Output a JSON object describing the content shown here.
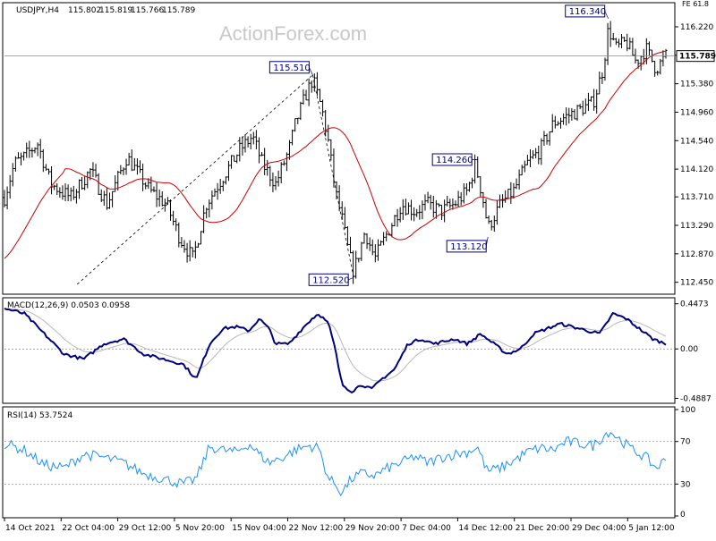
{
  "colors": {
    "price": "#000000",
    "ma": "#cc0000",
    "macd_main": "#000080",
    "macd_signal": "#b8b8b8",
    "rsi": "#1e90ff",
    "callout_border": "#000080",
    "grid": "#888888"
  },
  "watermark": "ActionForex.com",
  "chart_data": [
    {
      "type": "bar",
      "panel": "price",
      "info": {
        "symbol_tf": "USDJPY,H4",
        "open": "115.802",
        "high": "115.819",
        "low": "115.766",
        "close": "115.789"
      },
      "corner_text": "FE 61.8",
      "ylim": [
        112.3,
        116.55
      ],
      "y_ticks": [
        "116.220",
        "115.800",
        "115.380",
        "114.960",
        "114.540",
        "114.120",
        "113.710",
        "113.290",
        "112.870",
        "112.450"
      ],
      "current_price": "115.789",
      "callouts": [
        {
          "label": "116.340",
          "value": 116.34,
          "x": 0.913
        },
        {
          "label": "115.510",
          "value": 115.51,
          "x": 0.466
        },
        {
          "label": "114.260",
          "value": 114.26,
          "x": 0.712
        },
        {
          "label": "113.120",
          "value": 113.12,
          "x": 0.731
        },
        {
          "label": "112.520",
          "value": 112.52,
          "x": 0.528
        }
      ],
      "anchors": [
        [
          0,
          113.7
        ],
        [
          0.015,
          114.2
        ],
        [
          0.03,
          114.3
        ],
        [
          0.05,
          114.5
        ],
        [
          0.07,
          113.9
        ],
        [
          0.1,
          113.7
        ],
        [
          0.13,
          114.1
        ],
        [
          0.155,
          113.6
        ],
        [
          0.185,
          114.3
        ],
        [
          0.22,
          113.8
        ],
        [
          0.245,
          113.6
        ],
        [
          0.265,
          113.1
        ],
        [
          0.285,
          112.8
        ],
        [
          0.305,
          113.6
        ],
        [
          0.33,
          114.0
        ],
        [
          0.355,
          114.4
        ],
        [
          0.375,
          114.6
        ],
        [
          0.39,
          114.2
        ],
        [
          0.41,
          113.9
        ],
        [
          0.43,
          114.4
        ],
        [
          0.44,
          114.8
        ],
        [
          0.455,
          115.2
        ],
        [
          0.466,
          115.45
        ],
        [
          0.48,
          115.0
        ],
        [
          0.49,
          114.5
        ],
        [
          0.5,
          113.8
        ],
        [
          0.51,
          113.4
        ],
        [
          0.52,
          112.9
        ],
        [
          0.528,
          112.6
        ],
        [
          0.545,
          113.2
        ],
        [
          0.56,
          112.8
        ],
        [
          0.58,
          113.2
        ],
        [
          0.6,
          113.6
        ],
        [
          0.62,
          113.5
        ],
        [
          0.64,
          113.6
        ],
        [
          0.66,
          113.5
        ],
        [
          0.68,
          113.6
        ],
        [
          0.7,
          113.8
        ],
        [
          0.712,
          114.2
        ],
        [
          0.725,
          113.6
        ],
        [
          0.731,
          113.25
        ],
        [
          0.75,
          113.6
        ],
        [
          0.77,
          113.8
        ],
        [
          0.79,
          114.2
        ],
        [
          0.81,
          114.4
        ],
        [
          0.83,
          114.8
        ],
        [
          0.85,
          114.9
        ],
        [
          0.87,
          115.0
        ],
        [
          0.89,
          115.1
        ],
        [
          0.905,
          115.6
        ],
        [
          0.913,
          116.2
        ],
        [
          0.925,
          115.9
        ],
        [
          0.94,
          116.0
        ],
        [
          0.955,
          115.7
        ],
        [
          0.97,
          115.9
        ],
        [
          0.985,
          115.6
        ],
        [
          1.0,
          115.79
        ]
      ],
      "ma_period": 22,
      "fib_line": {
        "from": [
          0.0,
          112.4
        ],
        "to": [
          0.466,
          115.51
        ],
        "to2": [
          0.528,
          112.52
        ]
      }
    },
    {
      "type": "line",
      "panel": "macd",
      "label": "MACD(12,26,9) 0.0503 0.0958",
      "ylim": [
        -0.52,
        0.48
      ],
      "y_ticks": [
        "0.4473",
        "0.00",
        "-0.4887"
      ],
      "anchors": [
        [
          0,
          0.4
        ],
        [
          0.03,
          0.35
        ],
        [
          0.06,
          0.15
        ],
        [
          0.09,
          -0.05
        ],
        [
          0.12,
          -0.1
        ],
        [
          0.15,
          0.05
        ],
        [
          0.18,
          0.1
        ],
        [
          0.21,
          -0.05
        ],
        [
          0.24,
          -0.1
        ],
        [
          0.27,
          -0.15
        ],
        [
          0.29,
          -0.3
        ],
        [
          0.31,
          0.05
        ],
        [
          0.33,
          0.2
        ],
        [
          0.35,
          0.22
        ],
        [
          0.37,
          0.18
        ],
        [
          0.385,
          0.3
        ],
        [
          0.4,
          0.2
        ],
        [
          0.41,
          0.05
        ],
        [
          0.43,
          0.05
        ],
        [
          0.45,
          0.2
        ],
        [
          0.465,
          0.3
        ],
        [
          0.475,
          0.35
        ],
        [
          0.49,
          0.25
        ],
        [
          0.5,
          0.0
        ],
        [
          0.51,
          -0.35
        ],
        [
          0.525,
          -0.42
        ],
        [
          0.54,
          -0.35
        ],
        [
          0.555,
          -0.4
        ],
        [
          0.57,
          -0.3
        ],
        [
          0.59,
          -0.2
        ],
        [
          0.61,
          0.05
        ],
        [
          0.63,
          0.1
        ],
        [
          0.65,
          0.05
        ],
        [
          0.68,
          0.1
        ],
        [
          0.7,
          0.05
        ],
        [
          0.72,
          0.15
        ],
        [
          0.74,
          0.05
        ],
        [
          0.76,
          -0.05
        ],
        [
          0.78,
          0.0
        ],
        [
          0.8,
          0.15
        ],
        [
          0.82,
          0.2
        ],
        [
          0.84,
          0.25
        ],
        [
          0.87,
          0.2
        ],
        [
          0.9,
          0.15
        ],
        [
          0.92,
          0.35
        ],
        [
          0.94,
          0.3
        ],
        [
          0.96,
          0.2
        ],
        [
          0.98,
          0.1
        ],
        [
          1.0,
          0.05
        ]
      ]
    },
    {
      "type": "line",
      "panel": "rsi",
      "label": "RSI(14) 53.7524",
      "ylim": [
        0,
        100
      ],
      "y_ticks": [
        "100",
        "70",
        "30",
        "0"
      ],
      "y_tick_values": [
        100,
        70,
        30,
        0
      ],
      "anchors": [
        [
          0,
          68
        ],
        [
          0.03,
          62
        ],
        [
          0.06,
          48
        ],
        [
          0.09,
          45
        ],
        [
          0.12,
          58
        ],
        [
          0.15,
          55
        ],
        [
          0.18,
          50
        ],
        [
          0.21,
          40
        ],
        [
          0.24,
          35
        ],
        [
          0.27,
          30
        ],
        [
          0.29,
          35
        ],
        [
          0.31,
          65
        ],
        [
          0.33,
          62
        ],
        [
          0.35,
          60
        ],
        [
          0.37,
          68
        ],
        [
          0.385,
          58
        ],
        [
          0.4,
          50
        ],
        [
          0.42,
          55
        ],
        [
          0.44,
          62
        ],
        [
          0.46,
          66
        ],
        [
          0.475,
          64
        ],
        [
          0.49,
          35
        ],
        [
          0.5,
          30
        ],
        [
          0.51,
          22
        ],
        [
          0.525,
          35
        ],
        [
          0.54,
          40
        ],
        [
          0.56,
          38
        ],
        [
          0.58,
          45
        ],
        [
          0.6,
          50
        ],
        [
          0.62,
          56
        ],
        [
          0.64,
          50
        ],
        [
          0.66,
          55
        ],
        [
          0.68,
          58
        ],
        [
          0.7,
          60
        ],
        [
          0.715,
          65
        ],
        [
          0.73,
          42
        ],
        [
          0.75,
          45
        ],
        [
          0.77,
          52
        ],
        [
          0.79,
          60
        ],
        [
          0.81,
          64
        ],
        [
          0.83,
          62
        ],
        [
          0.85,
          70
        ],
        [
          0.87,
          68
        ],
        [
          0.89,
          66
        ],
        [
          0.905,
          75
        ],
        [
          0.915,
          80
        ],
        [
          0.93,
          72
        ],
        [
          0.95,
          62
        ],
        [
          0.97,
          55
        ],
        [
          0.985,
          45
        ],
        [
          1.0,
          53
        ]
      ]
    }
  ],
  "x_axis_labels": [
    "14 Oct 2021",
    "22 Oct 04:00",
    "29 Oct 12:00",
    "5 Nov 20:00",
    "15 Nov 04:00",
    "22 Nov 12:00",
    "29 Nov 20:00",
    "7 Dec 04:00",
    "14 Dec 12:00",
    "21 Dec 20:00",
    "29 Dec 04:00",
    "5 Jan 12:00"
  ]
}
